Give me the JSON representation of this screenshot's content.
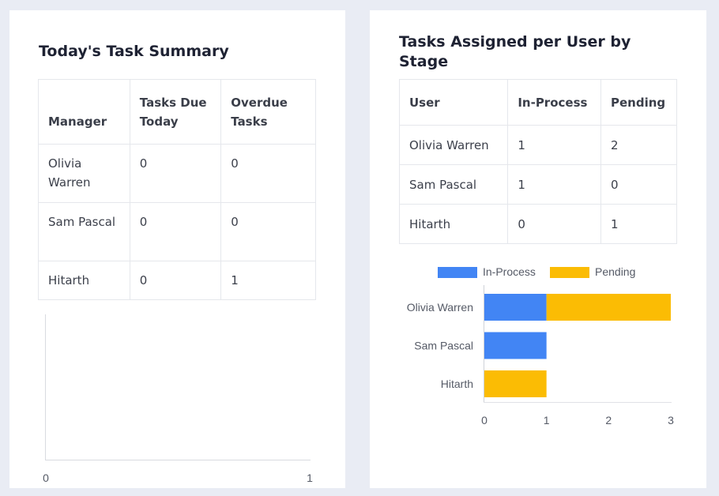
{
  "summary": {
    "title": "Today's Task Summary",
    "headers": [
      "Manager",
      "Tasks Due Today",
      "Overdue Tasks"
    ],
    "rows": [
      {
        "manager": "Olivia Warren",
        "due_today": "0",
        "overdue": "0"
      },
      {
        "manager": "Sam Pascal",
        "due_today": "0",
        "overdue": "0"
      },
      {
        "manager": "Hitarth",
        "due_today": "0",
        "overdue": "1"
      }
    ],
    "empty_chart": {
      "x_ticks": [
        "0",
        "1"
      ]
    }
  },
  "stage": {
    "title": "Tasks Assigned per User by Stage",
    "headers": [
      "User",
      "In-Process",
      "Pending"
    ],
    "rows": [
      {
        "user": "Olivia Warren",
        "in_process": "1",
        "pending": "2"
      },
      {
        "user": "Sam Pascal",
        "in_process": "1",
        "pending": "0"
      },
      {
        "user": "Hitarth",
        "in_process": "0",
        "pending": "1"
      }
    ]
  },
  "chart_data": {
    "type": "bar",
    "orientation": "horizontal",
    "stacked": true,
    "categories": [
      "Olivia Warren",
      "Sam Pascal",
      "Hitarth"
    ],
    "series": [
      {
        "name": "In-Process",
        "values": [
          1,
          1,
          0
        ],
        "color": "#4285f4"
      },
      {
        "name": "Pending",
        "values": [
          2,
          0,
          1
        ],
        "color": "#fbbc04"
      }
    ],
    "xlim": [
      0,
      3
    ],
    "x_ticks": [
      "0",
      "1",
      "2",
      "3"
    ],
    "legend": "top",
    "grid": false
  }
}
